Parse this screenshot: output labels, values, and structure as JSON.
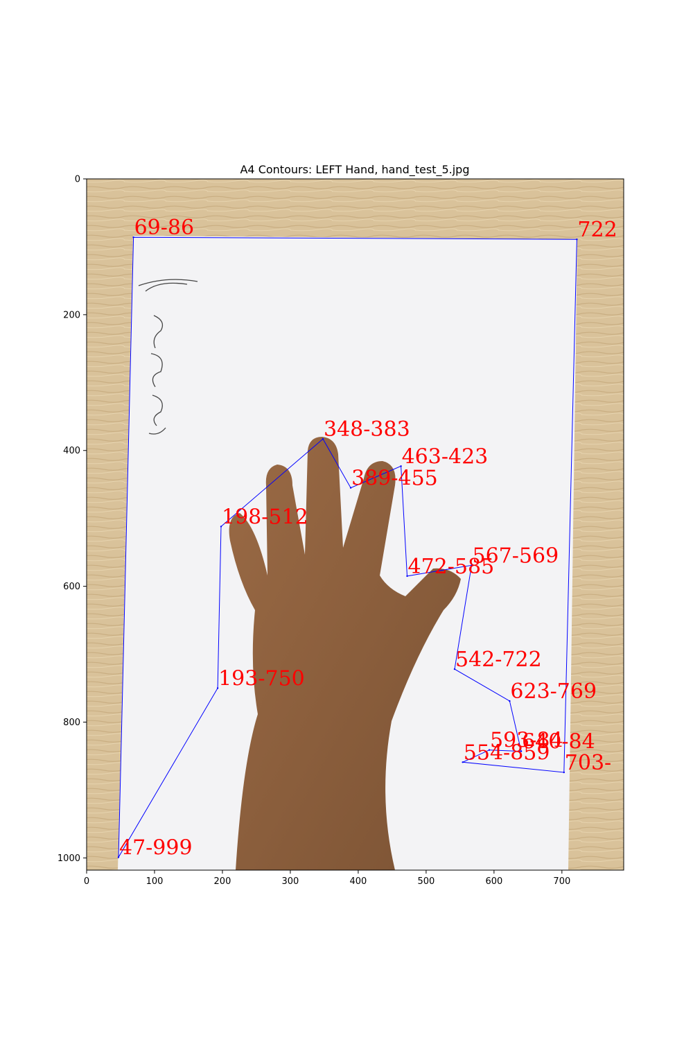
{
  "chart_data": {
    "type": "scatter",
    "title": "A4 Contours: LEFT Hand, hand_test_5.jpg",
    "xlabel": "",
    "ylabel": "",
    "xlim": [
      0,
      791
    ],
    "ylim": [
      1018,
      0
    ],
    "y_inverted": true,
    "grid": false,
    "xticks": [
      0,
      100,
      200,
      300,
      400,
      500,
      600,
      700
    ],
    "yticks": [
      0,
      200,
      400,
      600,
      800,
      1000
    ],
    "colors": {
      "contour": "#0000ff",
      "annotation": "#ff0000",
      "table_wood": "#d9c29a",
      "paper": "#f2f2f4",
      "skin": "#8c5e3c"
    },
    "background_image": "photo of a white A4 sheet on a wooden table with a left hand placed on it and handwritten scribbles on the left side",
    "series": [
      {
        "name": "",
        "closed": true,
        "points": [
          [
            69,
            86
          ],
          [
            722,
            89
          ],
          [
            703,
            874
          ],
          [
            554,
            859
          ],
          [
            593,
            841
          ],
          [
            640,
            843
          ],
          [
            623,
            769
          ],
          [
            542,
            722
          ],
          [
            567,
            569
          ],
          [
            472,
            585
          ],
          [
            463,
            423
          ],
          [
            389,
            455
          ],
          [
            348,
            383
          ],
          [
            198,
            512
          ],
          [
            193,
            750
          ],
          [
            47,
            999
          ]
        ]
      }
    ],
    "annotations": [
      {
        "text": "69-86",
        "x": 69,
        "y": 86
      },
      {
        "text": "722",
        "x": 722,
        "y": 89
      },
      {
        "text": "348-383",
        "x": 348,
        "y": 383
      },
      {
        "text": "463-423",
        "x": 463,
        "y": 423
      },
      {
        "text": "389-455",
        "x": 389,
        "y": 455
      },
      {
        "text": "198-512",
        "x": 198,
        "y": 512
      },
      {
        "text": "567-569",
        "x": 567,
        "y": 569
      },
      {
        "text": "472-585",
        "x": 472,
        "y": 585
      },
      {
        "text": "542-722",
        "x": 542,
        "y": 722
      },
      {
        "text": "193-750",
        "x": 193,
        "y": 750
      },
      {
        "text": "623-769",
        "x": 623,
        "y": 769
      },
      {
        "text": "593-84",
        "x": 593,
        "y": 841
      },
      {
        "text": "640-84",
        "x": 640,
        "y": 843
      },
      {
        "text": "554-859",
        "x": 554,
        "y": 859
      },
      {
        "text": "703-",
        "x": 703,
        "y": 874
      },
      {
        "text": "47-999",
        "x": 47,
        "y": 999
      }
    ]
  }
}
